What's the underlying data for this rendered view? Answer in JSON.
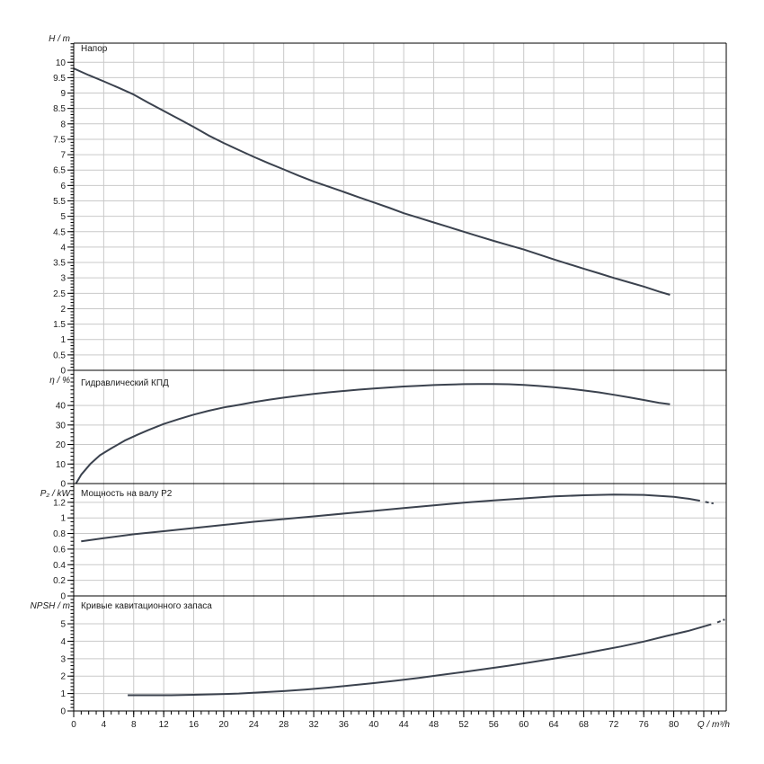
{
  "colors": {
    "background": "#ffffff",
    "curve": "#3b424e",
    "grid": "#c9c9c9",
    "frame": "#000000",
    "text": "#1b1b1b"
  },
  "x_axis": {
    "label": "Q / m³/h",
    "range": [
      0,
      87
    ],
    "grid_step": 4,
    "grid_max": 84,
    "minor_step": 1,
    "minor_max": 86,
    "tick_labels": [
      "0",
      "4",
      "8",
      "12",
      "16",
      "20",
      "24",
      "28",
      "32",
      "36",
      "40",
      "44",
      "48",
      "52",
      "56",
      "60",
      "64",
      "68",
      "72",
      "76",
      "80"
    ]
  },
  "chart_data": [
    {
      "type": "line",
      "key": "head",
      "title": "Напор",
      "unit_label": "H / m",
      "ylim": [
        0,
        10.62
      ],
      "y_minor": 0.1,
      "y_labels": [
        [
          "10",
          10
        ],
        [
          "9.5",
          9.5
        ],
        [
          "9",
          9
        ],
        [
          "8.5",
          8.5
        ],
        [
          "8",
          8
        ],
        [
          "7.5",
          7.5
        ],
        [
          "7",
          7
        ],
        [
          "6.5",
          6.5
        ],
        [
          "6",
          6
        ],
        [
          "5.5",
          5.5
        ],
        [
          "5",
          5
        ],
        [
          "4.5",
          4.5
        ],
        [
          "4",
          4
        ],
        [
          "3.5",
          3.5
        ],
        [
          "3",
          3
        ],
        [
          "2.5",
          2.5
        ],
        [
          "2",
          2
        ],
        [
          "1.5",
          1.5
        ],
        [
          "1",
          1
        ],
        [
          "0.5",
          0.5
        ],
        [
          "0",
          0
        ]
      ],
      "series": [
        {
          "name": "head-curve",
          "style": "solid",
          "points": [
            [
              0,
              9.8
            ],
            [
              2,
              9.58
            ],
            [
              4,
              9.38
            ],
            [
              6,
              9.17
            ],
            [
              8,
              8.95
            ],
            [
              10,
              8.68
            ],
            [
              12,
              8.42
            ],
            [
              14,
              8.16
            ],
            [
              16,
              7.9
            ],
            [
              18,
              7.62
            ],
            [
              20,
              7.38
            ],
            [
              22,
              7.15
            ],
            [
              24,
              6.93
            ],
            [
              26,
              6.72
            ],
            [
              28,
              6.52
            ],
            [
              30,
              6.32
            ],
            [
              32,
              6.13
            ],
            [
              34,
              5.96
            ],
            [
              36,
              5.79
            ],
            [
              38,
              5.62
            ],
            [
              40,
              5.45
            ],
            [
              42,
              5.28
            ],
            [
              44,
              5.1
            ],
            [
              46,
              4.95
            ],
            [
              48,
              4.8
            ],
            [
              50,
              4.65
            ],
            [
              52,
              4.5
            ],
            [
              54,
              4.35
            ],
            [
              56,
              4.2
            ],
            [
              58,
              4.06
            ],
            [
              60,
              3.92
            ],
            [
              62,
              3.76
            ],
            [
              64,
              3.6
            ],
            [
              66,
              3.45
            ],
            [
              68,
              3.3
            ],
            [
              70,
              3.15
            ],
            [
              72,
              3.0
            ],
            [
              74,
              2.86
            ],
            [
              76,
              2.72
            ],
            [
              78,
              2.56
            ],
            [
              79.5,
              2.45
            ]
          ]
        }
      ]
    },
    {
      "type": "line",
      "key": "efficiency",
      "title": "Гидравлический КПД",
      "unit_label": "η / %",
      "ylim": [
        0,
        58
      ],
      "y_minor": 2,
      "y_labels": [
        [
          "40",
          40
        ],
        [
          "30",
          30
        ],
        [
          "20",
          20
        ],
        [
          "10",
          10
        ],
        [
          "0",
          0
        ]
      ],
      "series": [
        {
          "name": "efficiency-curve",
          "style": "solid",
          "points": [
            [
              0.3,
              0
            ],
            [
              1,
              4.5
            ],
            [
              2.2,
              10
            ],
            [
              3.5,
              14.5
            ],
            [
              5,
              18
            ],
            [
              6.8,
              22
            ],
            [
              8.5,
              25
            ],
            [
              10,
              27.5
            ],
            [
              12,
              30.5
            ],
            [
              14,
              33
            ],
            [
              16,
              35.3
            ],
            [
              18,
              37.3
            ],
            [
              20,
              39
            ],
            [
              22,
              40.3
            ],
            [
              24,
              41.7
            ],
            [
              26,
              42.9
            ],
            [
              28,
              44
            ],
            [
              30,
              45
            ],
            [
              32,
              45.9
            ],
            [
              34,
              46.7
            ],
            [
              36,
              47.4
            ],
            [
              38,
              48.1
            ],
            [
              40,
              48.7
            ],
            [
              42,
              49.2
            ],
            [
              44,
              49.7
            ],
            [
              46,
              50.1
            ],
            [
              48,
              50.45
            ],
            [
              50,
              50.7
            ],
            [
              52,
              50.9
            ],
            [
              54,
              51
            ],
            [
              56,
              51
            ],
            [
              58,
              50.85
            ],
            [
              60,
              50.5
            ],
            [
              62,
              50
            ],
            [
              64,
              49.4
            ],
            [
              66,
              48.6
            ],
            [
              68,
              47.7
            ],
            [
              70,
              46.7
            ],
            [
              72,
              45.5
            ],
            [
              74,
              44.2
            ],
            [
              76,
              42.8
            ],
            [
              78,
              41.4
            ],
            [
              79.5,
              40.6
            ]
          ]
        }
      ]
    },
    {
      "type": "line",
      "key": "power",
      "title": "Мощность на валу P2",
      "unit_label": "P₂ / kW",
      "ylim": [
        0,
        1.44
      ],
      "y_minor": 0.05,
      "y_labels": [
        [
          "1.2",
          1.2
        ],
        [
          "1",
          1
        ],
        [
          "0.8",
          0.8
        ],
        [
          "0.6",
          0.6
        ],
        [
          "0.4",
          0.4
        ],
        [
          "0.2",
          0.2
        ],
        [
          "0",
          0
        ]
      ],
      "series": [
        {
          "name": "power-curve",
          "style": "solid",
          "points": [
            [
              1,
              0.7
            ],
            [
              4,
              0.74
            ],
            [
              8,
              0.79
            ],
            [
              12,
              0.83
            ],
            [
              16,
              0.87
            ],
            [
              20,
              0.91
            ],
            [
              24,
              0.95
            ],
            [
              28,
              0.985
            ],
            [
              32,
              1.02
            ],
            [
              36,
              1.055
            ],
            [
              40,
              1.09
            ],
            [
              44,
              1.125
            ],
            [
              48,
              1.16
            ],
            [
              52,
              1.195
            ],
            [
              56,
              1.225
            ],
            [
              60,
              1.25
            ],
            [
              64,
              1.275
            ],
            [
              68,
              1.29
            ],
            [
              72,
              1.3
            ],
            [
              76,
              1.295
            ],
            [
              80,
              1.27
            ],
            [
              82,
              1.245
            ],
            [
              83.5,
              1.22
            ]
          ]
        },
        {
          "name": "power-curve-extension",
          "style": "dashed",
          "points": [
            [
              84.2,
              1.205
            ],
            [
              85.3,
              1.185
            ]
          ]
        }
      ]
    },
    {
      "type": "line",
      "key": "npsh",
      "title": "Кривые кавитационного запаса",
      "unit_label": "NPSH / m",
      "ylim": [
        0,
        6.6
      ],
      "y_minor": 0.2,
      "y_labels": [
        [
          "5",
          5
        ],
        [
          "4",
          4
        ],
        [
          "3",
          3
        ],
        [
          "2",
          2
        ],
        [
          "1",
          1
        ],
        [
          "0",
          0
        ]
      ],
      "series": [
        {
          "name": "npsh-curve",
          "style": "solid",
          "points": [
            [
              7.2,
              0.9
            ],
            [
              10,
              0.9
            ],
            [
              13,
              0.9
            ],
            [
              16,
              0.93
            ],
            [
              19,
              0.96
            ],
            [
              22,
              1.0
            ],
            [
              25,
              1.07
            ],
            [
              28,
              1.14
            ],
            [
              31,
              1.23
            ],
            [
              34,
              1.34
            ],
            [
              37,
              1.47
            ],
            [
              40,
              1.6
            ],
            [
              43,
              1.74
            ],
            [
              46,
              1.9
            ],
            [
              49,
              2.07
            ],
            [
              52,
              2.24
            ],
            [
              55,
              2.42
            ],
            [
              58,
              2.6
            ],
            [
              61,
              2.8
            ],
            [
              64,
              3.0
            ],
            [
              67,
              3.22
            ],
            [
              70,
              3.46
            ],
            [
              73,
              3.7
            ],
            [
              76,
              3.98
            ],
            [
              79,
              4.3
            ],
            [
              82,
              4.6
            ],
            [
              85,
              4.97
            ]
          ]
        },
        {
          "name": "npsh-curve-extension",
          "style": "dashed",
          "points": [
            [
              85.8,
              5.08
            ],
            [
              86.8,
              5.25
            ]
          ]
        }
      ]
    }
  ]
}
